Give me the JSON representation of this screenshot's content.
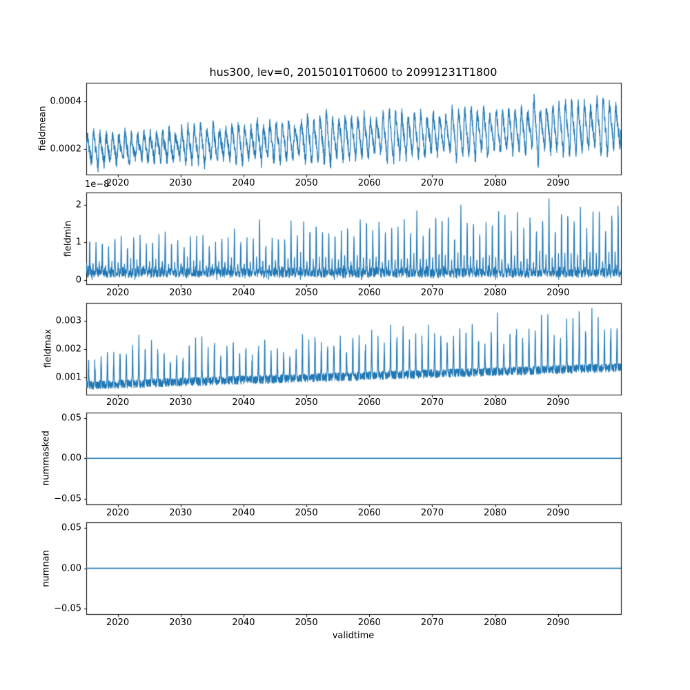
{
  "figure": {
    "background": "#ffffff",
    "line_color": "#1f77b4",
    "axis_color": "#000000",
    "text_color": "#000000"
  },
  "chart_data": {
    "type": "line",
    "title": "hus300, lev=0, 20150101T0600 to 20991231T1800",
    "xlabel": "validtime",
    "x_range_years": [
      2015,
      2100
    ],
    "xticks": [
      2020,
      2030,
      2040,
      2050,
      2060,
      2070,
      2080,
      2090
    ],
    "xtick_labels": [
      "2020",
      "2030",
      "2040",
      "2050",
      "2060",
      "2070",
      "2080",
      "2090"
    ],
    "time_cadence": "6-hourly samples from 20150101T0600 to 20991231T1800",
    "subplots": [
      {
        "name": "fieldmean",
        "ylabel": "fieldmean",
        "offset_text": "",
        "ylim": [
          9.2e-05,
          0.000478
        ],
        "yticks": [
          0.0002,
          0.0004
        ],
        "ytick_labels": [
          "0.0002",
          "0.0004"
        ],
        "seed": 7,
        "synth": {
          "kind": "seasonal-noise",
          "points_per_year": 40,
          "base_start": 0.000195,
          "base_end": 0.000298,
          "season_amp_start": 5.8e-05,
          "season_amp_end": 9.6e-05,
          "noise": 5.2e-05,
          "year_mult_min": 0.72,
          "year_mult_span": 0.55,
          "tall_prob": 0.1,
          "tall_boost": 1.2
        },
        "summary": {
          "pattern": "annual oscillation with rising trend",
          "envelope_by_year": {
            "2015": [
              0.00012,
              0.00029
            ],
            "2055": [
              0.00015,
              0.00036
            ],
            "2099": [
              0.00019,
              0.00046
            ]
          }
        }
      },
      {
        "name": "fieldmin",
        "ylabel": "fieldmin",
        "offset_text": "1e−8",
        "units": "1e-8",
        "ylim": [
          -0.115,
          2.32
        ],
        "yticks": [
          0,
          1,
          2
        ],
        "ytick_labels": [
          "0",
          "1",
          "2"
        ],
        "seed": 13,
        "synth": {
          "kind": "spikes",
          "points_per_year": 40,
          "base_level": 0.16,
          "base_noise": 0.22,
          "spike_exp": 14,
          "second_scale": 0.3,
          "amp_start": 0.95,
          "amp_end": 1.7,
          "year_mult_min": 0.7,
          "year_mult_span": 0.5,
          "tall_prob": 0.07,
          "tall_boost": 1.15
        },
        "summary": {
          "pattern": "low noisy baseline with narrow annual spikes growing over time",
          "baseline_band_1e8": [
            0,
            0.4
          ],
          "annual_spike_peaks_1e8": {
            "2015": 1.0,
            "2055": 1.4,
            "2090": 2.3,
            "2099": 1.8
          }
        }
      },
      {
        "name": "fieldmax",
        "ylabel": "fieldmax",
        "offset_text": "",
        "ylim": [
          0.0004,
          0.00365
        ],
        "yticks": [
          0.001,
          0.002,
          0.003
        ],
        "ytick_labels": [
          "0.001",
          "0.002",
          "0.003"
        ],
        "seed": 29,
        "cap": 0.00345,
        "synth": {
          "kind": "baseline-spikes",
          "points_per_year": 40,
          "base_start": 0.00072,
          "base_end": 0.00135,
          "base_noise": 0.0003,
          "spike_exp": 12,
          "amp_start": 0.0011,
          "amp_end": 0.0017,
          "year_mult_min": 0.65,
          "year_mult_span": 0.55,
          "tall_prob": 0.08,
          "tall_boost": 1.15
        },
        "summary": {
          "pattern": "noisy rising baseline with upward annual spikes",
          "baseline_by_year": {
            "2015": 0.0007,
            "2099": 0.0014
          },
          "annual_spike_peaks": {
            "2015": 0.0022,
            "2055": 0.0027,
            "2095": 0.0035
          }
        }
      },
      {
        "name": "nummasked",
        "ylabel": "nummasked",
        "offset_text": "",
        "ylim": [
          -0.0565,
          0.0565
        ],
        "yticks": [
          -0.05,
          0,
          0.05
        ],
        "ytick_labels": [
          "−0.05",
          "0.00",
          "0.05"
        ],
        "seed": 41,
        "synth": {
          "kind": "constant",
          "value": 0
        },
        "summary": {
          "constant_value": 0
        }
      },
      {
        "name": "numnan",
        "ylabel": "numnan",
        "offset_text": "",
        "ylim": [
          -0.0565,
          0.0565
        ],
        "yticks": [
          -0.05,
          0,
          0.05
        ],
        "ytick_labels": [
          "−0.05",
          "0.00",
          "0.05"
        ],
        "seed": 43,
        "synth": {
          "kind": "constant",
          "value": 0
        },
        "summary": {
          "constant_value": 0
        }
      }
    ]
  }
}
